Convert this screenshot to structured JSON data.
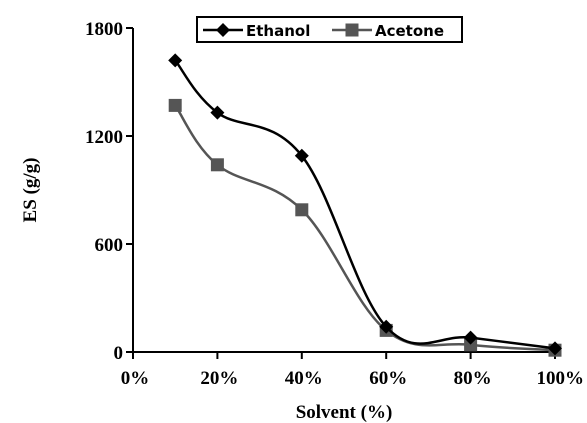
{
  "chart_data": {
    "type": "line",
    "title": "",
    "xlabel": "Solvent (%)",
    "ylabel": "ES (g/g)",
    "x_tick_labels": [
      "0%",
      "20%",
      "40%",
      "60%",
      "80%",
      "100%"
    ],
    "y_tick_labels": [
      "0",
      "600",
      "1200",
      "1800"
    ],
    "xlim": [
      0,
      100
    ],
    "ylim": [
      0,
      1800
    ],
    "grid": false,
    "legend_position": "top",
    "series": [
      {
        "name": "Ethanol",
        "color": "#000000",
        "marker": "diamond",
        "x": [
          10,
          20,
          40,
          60,
          80,
          100
        ],
        "y": [
          1620,
          1330,
          1090,
          140,
          80,
          20
        ]
      },
      {
        "name": "Acetone",
        "color": "#555555",
        "marker": "square",
        "x": [
          10,
          20,
          40,
          60,
          80,
          100
        ],
        "y": [
          1370,
          1040,
          790,
          120,
          40,
          10
        ]
      }
    ]
  }
}
